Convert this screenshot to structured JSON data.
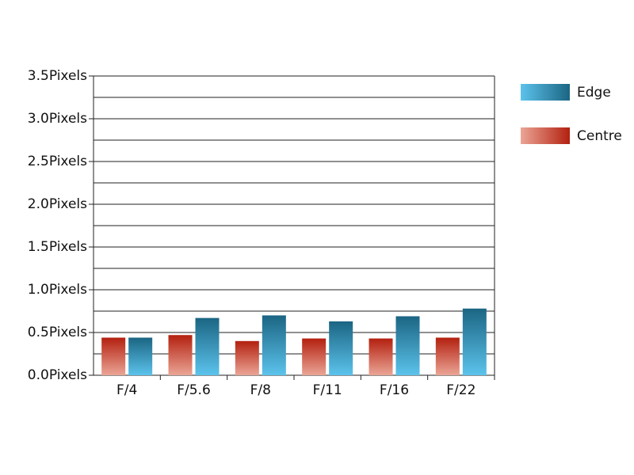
{
  "chart_data": {
    "type": "bar",
    "categories": [
      "F/4",
      "F/5.6",
      "F/8",
      "F/11",
      "F/16",
      "F/22"
    ],
    "series": [
      {
        "name": "Edge",
        "color": "#1b6583",
        "color_light": "#5cc3ec",
        "values": [
          0.44,
          0.67,
          0.7,
          0.63,
          0.69,
          0.78
        ]
      },
      {
        "name": "Centre",
        "color": "#b3200f",
        "color_light": "#eba596",
        "values": [
          0.44,
          0.47,
          0.4,
          0.43,
          0.43,
          0.44
        ]
      }
    ],
    "ylim": [
      0,
      3.5
    ],
    "yticks": [
      {
        "value": 0,
        "label": "0.0Pixels"
      },
      {
        "value": 0.5,
        "label": "0.5Pixels"
      },
      {
        "value": 1,
        "label": "1.0Pixels"
      },
      {
        "value": 1.5,
        "label": "1.5Pixels"
      },
      {
        "value": 2,
        "label": "2.0Pixels"
      },
      {
        "value": 2.5,
        "label": "2.5Pixels"
      },
      {
        "value": 3,
        "label": "3.0Pixels"
      },
      {
        "value": 3.5,
        "label": "3.5Pixels"
      }
    ],
    "yticks_minor": [
      0.25,
      0.75,
      1.25,
      1.75,
      2.25,
      2.75,
      3.25
    ],
    "grid": true,
    "legend": "right"
  }
}
